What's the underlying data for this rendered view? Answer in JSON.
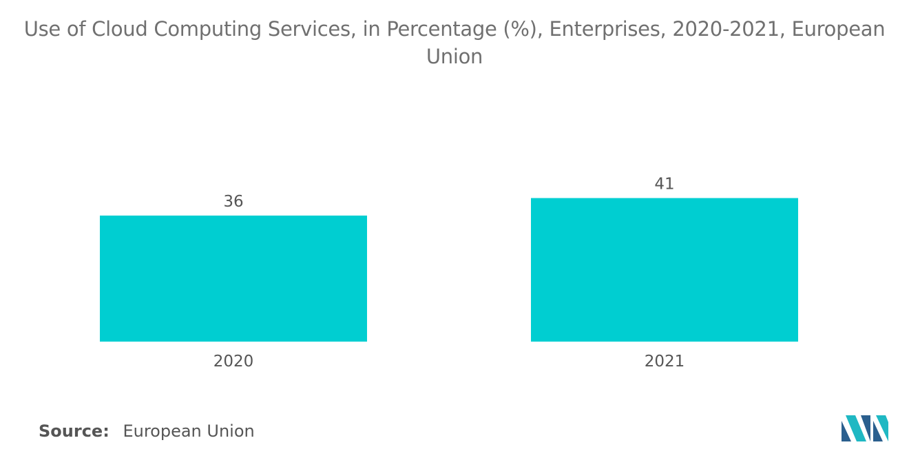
{
  "chart_data": {
    "type": "bar",
    "title_lines": [
      "Use of Cloud Computing Services, in Percentage (%), Enterprises, 2020-2021, European",
      "Union"
    ],
    "categories": [
      "2020",
      "2021"
    ],
    "values": [
      36,
      41
    ],
    "data_labels": [
      "36",
      "41"
    ],
    "xlabel": "",
    "ylabel": "",
    "ylim": [
      0,
      72
    ],
    "bar_color": "#00CED1",
    "grid": false,
    "legend": "none"
  },
  "source": {
    "label": "Source:",
    "value": "European Union"
  },
  "logo": {
    "icon": "mordor-intelligence-logo-icon",
    "colors": [
      "#2B5F8E",
      "#1FB8C3"
    ]
  }
}
